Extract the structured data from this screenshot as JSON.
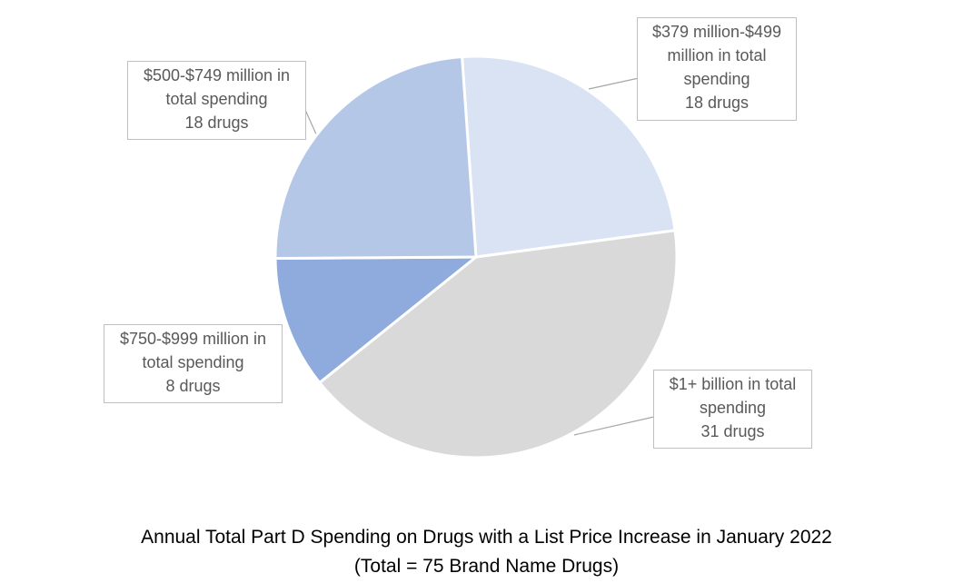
{
  "chart_data": {
    "type": "pie",
    "title": "Annual Total Part D Spending on Drugs with a List Price Increase in January 2022",
    "subtitle": "(Total = 75 Brand Name Drugs)",
    "slices": [
      {
        "key": "b379",
        "line1": "$379 million-$499",
        "line2": "million in total",
        "line3": "spending",
        "count_label": "18 drugs",
        "value": 18,
        "color": "#dae3f3"
      },
      {
        "key": "b1b",
        "line1": "$1+ billion in total",
        "line2": "spending",
        "line3": "",
        "count_label": "31 drugs",
        "value": 31,
        "color": "#d9d9d9"
      },
      {
        "key": "b750",
        "line1": "$750-$999 million in",
        "line2": "total spending",
        "line3": "",
        "count_label": "8 drugs",
        "value": 8,
        "color": "#8faadc"
      },
      {
        "key": "b500",
        "line1": "$500-$749 million in",
        "line2": "total spending",
        "line3": "",
        "count_label": "18 drugs",
        "value": 18,
        "color": "#b4c7e7"
      }
    ]
  }
}
